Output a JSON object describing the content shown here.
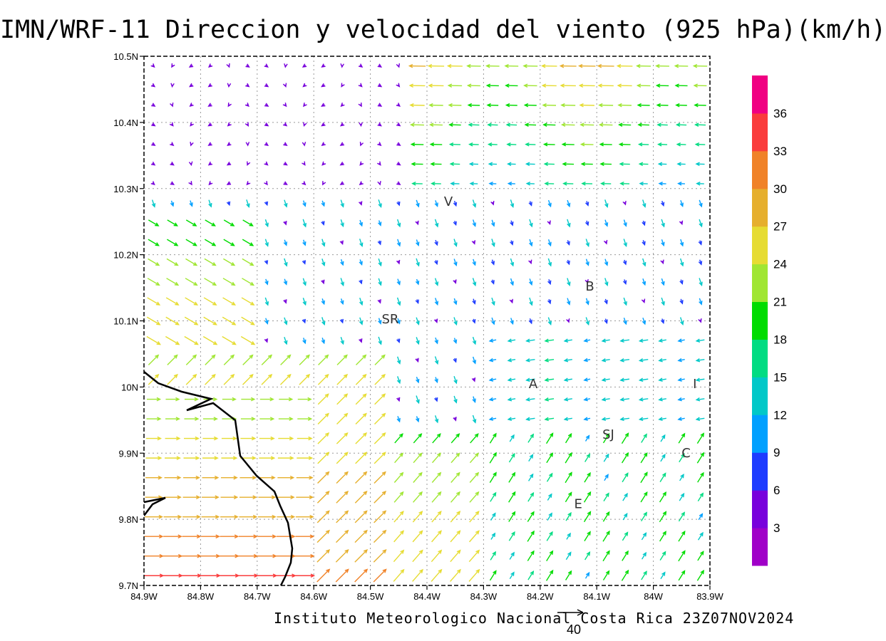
{
  "title": "IMN/WRF-11 Direccion y velocidad del viento (925 hPa)(km/h)",
  "footer": "Instituto Meteorologico Nacional Costa Rica 23Z07NOV2024",
  "reference_vector": {
    "label": "40",
    "value": 40
  },
  "axes": {
    "x_ticks": [
      "84.9W",
      "84.8W",
      "84.7W",
      "84.6W",
      "84.5W",
      "84.4W",
      "84.3W",
      "84.2W",
      "84.1W",
      "84W",
      "83.9W"
    ],
    "y_ticks": [
      "9.7N",
      "9.8N",
      "9.9N",
      "10N",
      "10.1N",
      "10.2N",
      "10.3N",
      "10.4N",
      "10.5N"
    ],
    "lon_range": [
      -84.9,
      -83.9
    ],
    "lat_range": [
      9.7,
      10.5
    ]
  },
  "colorbar": {
    "labels": [
      "3",
      "6",
      "9",
      "12",
      "15",
      "18",
      "21",
      "24",
      "27",
      "30",
      "33",
      "36"
    ],
    "colors": [
      "#a000c8",
      "#7800dc",
      "#1e3cff",
      "#00a0ff",
      "#00c8c8",
      "#00dc82",
      "#00dc00",
      "#a0e632",
      "#e6dc32",
      "#e6af2d",
      "#f08228",
      "#fa3c3c",
      "#f00082"
    ]
  },
  "places": [
    {
      "label": "V",
      "lon": -84.37,
      "lat": 10.274
    },
    {
      "label": "B",
      "lon": -84.12,
      "lat": 10.146
    },
    {
      "label": "SR",
      "lon": -84.48,
      "lat": 10.096
    },
    {
      "label": "A",
      "lon": -84.22,
      "lat": 9.998
    },
    {
      "label": "I",
      "lon": -83.93,
      "lat": 9.998
    },
    {
      "label": "SJ",
      "lon": -84.09,
      "lat": 9.922
    },
    {
      "label": "C",
      "lon": -83.95,
      "lat": 9.894
    },
    {
      "label": "E",
      "lon": -84.14,
      "lat": 9.817
    }
  ]
}
